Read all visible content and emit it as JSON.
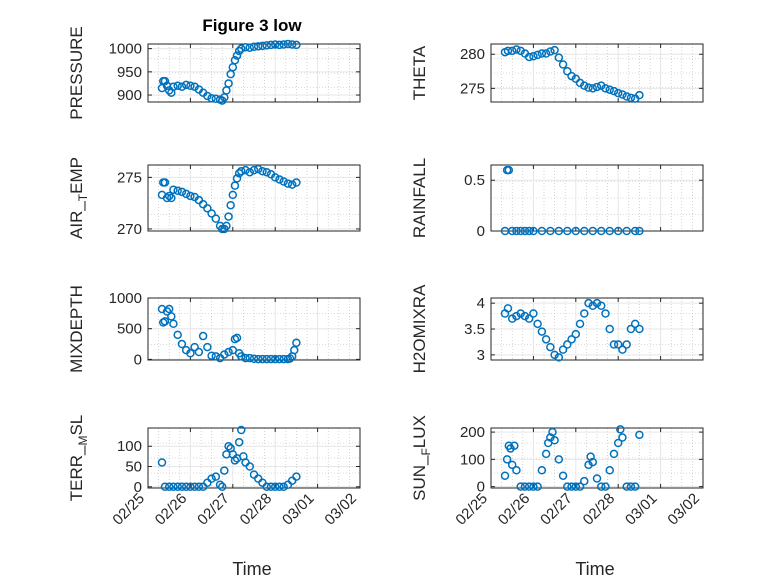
{
  "figure": {
    "title": "Figure 3 low",
    "xlabel": "Time"
  },
  "colors": {
    "marker": "#0072bd",
    "axis": "#262626",
    "grid": "#e6e6e6",
    "minor_grid": "#b8b8b8"
  },
  "chart_data": [
    {
      "id": "pressure",
      "type": "scatter",
      "ylabel": "PRESSURE",
      "xlabel": "",
      "ylim": [
        885,
        1010
      ],
      "yticks": [
        900,
        950,
        1000
      ],
      "ytick_labels": [
        "900",
        "950",
        "1000"
      ],
      "xlim": [
        "02/25",
        "03/02"
      ],
      "xtick_labels": [],
      "series": [
        {
          "x": [
            0.33,
            0.36,
            0.4,
            0.45,
            0.5,
            0.55,
            0.6,
            0.7,
            0.8,
            0.9,
            1.0,
            1.1,
            1.2,
            1.3,
            1.4,
            1.5,
            1.6,
            1.7,
            1.75,
            1.8,
            1.85,
            1.9,
            1.95,
            2.0,
            2.05,
            2.1,
            2.15,
            2.2,
            2.3,
            2.4,
            2.5,
            2.6,
            2.7,
            2.8,
            2.9,
            3.0,
            3.1,
            3.2,
            3.3,
            3.4,
            3.5
          ],
          "y": [
            915,
            930,
            930,
            920,
            910,
            905,
            918,
            920,
            918,
            922,
            920,
            918,
            912,
            905,
            898,
            893,
            892,
            890,
            888,
            895,
            910,
            925,
            945,
            960,
            975,
            985,
            995,
            1000,
            1003,
            1002,
            1004,
            1005,
            1006,
            1007,
            1008,
            1009,
            1008,
            1009,
            1010,
            1009,
            1008
          ]
        }
      ]
    },
    {
      "id": "theta",
      "type": "scatter",
      "ylabel": "THETA",
      "xlabel": "",
      "ylim": [
        273,
        281.5
      ],
      "yticks": [
        275,
        280
      ],
      "ytick_labels": [
        "275",
        "280"
      ],
      "xlim": [
        "02/25",
        "03/02"
      ],
      "xtick_labels": [],
      "series": [
        {
          "x": [
            0.33,
            0.4,
            0.5,
            0.6,
            0.7,
            0.8,
            0.9,
            1.0,
            1.1,
            1.2,
            1.3,
            1.4,
            1.5,
            1.6,
            1.7,
            1.8,
            1.9,
            2.0,
            2.1,
            2.2,
            2.3,
            2.4,
            2.5,
            2.6,
            2.7,
            2.8,
            2.9,
            3.0,
            3.1,
            3.2,
            3.3,
            3.4,
            3.5
          ],
          "y": [
            280.3,
            280.5,
            280.5,
            280.7,
            280.5,
            280.1,
            279.6,
            279.7,
            279.9,
            280.1,
            280.1,
            280.4,
            280.6,
            279.5,
            278.5,
            277.5,
            276.8,
            276.4,
            275.8,
            275.4,
            275.1,
            275.0,
            275.2,
            275.4,
            275.0,
            274.8,
            274.6,
            274.3,
            274.1,
            273.8,
            273.6,
            273.5,
            274.0
          ]
        }
      ]
    },
    {
      "id": "air_temp",
      "type": "scatter",
      "ylabel": "AIR_TEMP",
      "xlabel": "",
      "ylim": [
        269.8,
        276.2
      ],
      "yticks": [
        270,
        275
      ],
      "ytick_labels": [
        "270",
        "275"
      ],
      "xlim": [
        "02/25",
        "03/02"
      ],
      "xtick_labels": [],
      "series": [
        {
          "x": [
            0.33,
            0.36,
            0.4,
            0.45,
            0.5,
            0.55,
            0.6,
            0.7,
            0.8,
            0.9,
            1.0,
            1.1,
            1.2,
            1.3,
            1.4,
            1.5,
            1.6,
            1.7,
            1.75,
            1.8,
            1.85,
            1.9,
            1.95,
            2.0,
            2.05,
            2.1,
            2.15,
            2.2,
            2.3,
            2.4,
            2.5,
            2.6,
            2.7,
            2.8,
            2.9,
            3.0,
            3.1,
            3.2,
            3.3,
            3.4,
            3.5
          ],
          "y": [
            273.3,
            274.5,
            274.5,
            273.0,
            273.2,
            273.0,
            273.8,
            273.7,
            273.6,
            273.4,
            273.2,
            273.1,
            272.8,
            272.4,
            272.0,
            271.5,
            271.0,
            270.3,
            270.0,
            270.0,
            270.3,
            271.2,
            272.3,
            273.3,
            274.2,
            274.9,
            275.4,
            275.6,
            275.7,
            275.5,
            275.7,
            275.8,
            275.6,
            275.5,
            275.3,
            275.0,
            274.8,
            274.6,
            274.4,
            274.3,
            274.5
          ]
        }
      ]
    },
    {
      "id": "rainfall",
      "type": "scatter",
      "ylabel": "RAINFALL",
      "xlabel": "",
      "ylim": [
        0,
        0.65
      ],
      "yticks": [
        0,
        0.5
      ],
      "ytick_labels": [
        "0",
        "0.5"
      ],
      "xlim": [
        "02/25",
        "03/02"
      ],
      "xtick_labels": [],
      "series": [
        {
          "x": [
            0.33,
            0.38,
            0.42,
            0.5,
            0.6,
            0.7,
            0.8,
            0.9,
            1.0,
            1.2,
            1.4,
            1.6,
            1.8,
            2.0,
            2.2,
            2.4,
            2.6,
            2.8,
            3.0,
            3.2,
            3.4,
            3.5
          ],
          "y": [
            0,
            0.6,
            0.6,
            0,
            0,
            0,
            0,
            0,
            0,
            0,
            0,
            0,
            0,
            0,
            0,
            0,
            0,
            0,
            0,
            0,
            0,
            0
          ]
        }
      ]
    },
    {
      "id": "mixdepth",
      "type": "scatter",
      "ylabel": "MIXDEPTH",
      "xlabel": "",
      "ylim": [
        -10,
        1000
      ],
      "yticks": [
        0,
        500,
        1000
      ],
      "ytick_labels": [
        "0",
        "500",
        "1000"
      ],
      "xlim": [
        "02/25",
        "03/02"
      ],
      "xtick_labels": [],
      "series": [
        {
          "x": [
            0.33,
            0.36,
            0.4,
            0.45,
            0.5,
            0.55,
            0.6,
            0.7,
            0.8,
            0.9,
            1.0,
            1.1,
            1.2,
            1.3,
            1.4,
            1.5,
            1.6,
            1.7,
            1.8,
            1.9,
            2.0,
            2.05,
            2.1,
            2.15,
            2.2,
            2.3,
            2.4,
            2.5,
            2.6,
            2.7,
            2.8,
            2.9,
            3.0,
            3.1,
            3.2,
            3.3,
            3.35,
            3.4,
            3.45,
            3.5
          ],
          "y": [
            820,
            600,
            620,
            780,
            820,
            700,
            580,
            400,
            250,
            150,
            100,
            200,
            120,
            380,
            200,
            60,
            50,
            20,
            80,
            120,
            150,
            330,
            350,
            100,
            50,
            20,
            20,
            10,
            5,
            5,
            5,
            5,
            5,
            5,
            5,
            5,
            15,
            50,
            150,
            270
          ]
        }
      ]
    },
    {
      "id": "h2omixra",
      "type": "scatter",
      "ylabel": "H2OMIXRA",
      "xlabel": "",
      "ylim": [
        2.9,
        4.1
      ],
      "yticks": [
        3,
        3.5,
        4
      ],
      "ytick_labels": [
        "3",
        "3.5",
        "4"
      ],
      "xlim": [
        "02/25",
        "03/02"
      ],
      "xtick_labels": [],
      "series": [
        {
          "x": [
            0.33,
            0.4,
            0.5,
            0.6,
            0.7,
            0.8,
            0.9,
            1.0,
            1.1,
            1.2,
            1.3,
            1.4,
            1.5,
            1.6,
            1.7,
            1.8,
            1.9,
            2.0,
            2.1,
            2.2,
            2.3,
            2.4,
            2.5,
            2.6,
            2.7,
            2.8,
            2.9,
            3.0,
            3.1,
            3.2,
            3.3,
            3.4,
            3.5
          ],
          "y": [
            3.8,
            3.9,
            3.7,
            3.75,
            3.8,
            3.75,
            3.7,
            3.8,
            3.6,
            3.45,
            3.3,
            3.15,
            3.0,
            2.95,
            3.1,
            3.2,
            3.3,
            3.4,
            3.6,
            3.8,
            4.0,
            3.95,
            4.0,
            3.95,
            3.8,
            3.5,
            3.2,
            3.2,
            3.1,
            3.2,
            3.5,
            3.6,
            3.5
          ]
        }
      ]
    },
    {
      "id": "terr_msl",
      "type": "scatter",
      "ylabel": "TERR_MSL",
      "xlabel": "Time",
      "ylim": [
        -3,
        145
      ],
      "yticks": [
        0,
        50,
        100
      ],
      "ytick_labels": [
        "0",
        "50",
        "100"
      ],
      "xlim": [
        "02/25",
        "03/02"
      ],
      "xtick_labels": [
        "02/25",
        "02/26",
        "02/27",
        "02/28",
        "03/01",
        "03/02"
      ],
      "series": [
        {
          "x": [
            0.33,
            0.4,
            0.5,
            0.6,
            0.7,
            0.8,
            0.9,
            1.0,
            1.1,
            1.2,
            1.3,
            1.4,
            1.5,
            1.6,
            1.7,
            1.75,
            1.8,
            1.85,
            1.9,
            1.95,
            2.0,
            2.05,
            2.1,
            2.15,
            2.2,
            2.25,
            2.3,
            2.4,
            2.5,
            2.6,
            2.7,
            2.8,
            2.9,
            3.0,
            3.1,
            3.2,
            3.3,
            3.4,
            3.5
          ],
          "y": [
            60,
            0,
            0,
            0,
            0,
            0,
            0,
            0,
            0,
            0,
            0,
            10,
            20,
            25,
            5,
            0,
            40,
            80,
            100,
            95,
            80,
            65,
            70,
            110,
            140,
            75,
            60,
            50,
            30,
            20,
            10,
            0,
            0,
            0,
            0,
            0,
            5,
            15,
            25
          ]
        }
      ]
    },
    {
      "id": "sun_flux",
      "type": "scatter",
      "ylabel": "SUN_FLUX",
      "xlabel": "Time",
      "ylim": [
        -5,
        215
      ],
      "yticks": [
        0,
        100,
        200
      ],
      "ytick_labels": [
        "0",
        "100",
        "200"
      ],
      "xlim": [
        "02/25",
        "03/02"
      ],
      "xtick_labels": [
        "02/25",
        "02/26",
        "02/27",
        "02/28",
        "03/01",
        "03/02"
      ],
      "series": [
        {
          "x": [
            0.33,
            0.38,
            0.42,
            0.46,
            0.5,
            0.55,
            0.6,
            0.7,
            0.8,
            0.9,
            1.0,
            1.1,
            1.2,
            1.3,
            1.35,
            1.4,
            1.45,
            1.5,
            1.6,
            1.7,
            1.8,
            1.9,
            2.0,
            2.1,
            2.2,
            2.3,
            2.35,
            2.4,
            2.5,
            2.6,
            2.7,
            2.8,
            2.9,
            3.0,
            3.05,
            3.1,
            3.2,
            3.3,
            3.4,
            3.5
          ],
          "y": [
            40,
            100,
            150,
            140,
            80,
            150,
            60,
            0,
            0,
            0,
            0,
            0,
            60,
            120,
            160,
            180,
            200,
            170,
            100,
            40,
            0,
            0,
            0,
            0,
            20,
            80,
            110,
            90,
            30,
            0,
            0,
            60,
            120,
            160,
            210,
            180,
            0,
            0,
            0,
            190
          ]
        }
      ]
    }
  ]
}
